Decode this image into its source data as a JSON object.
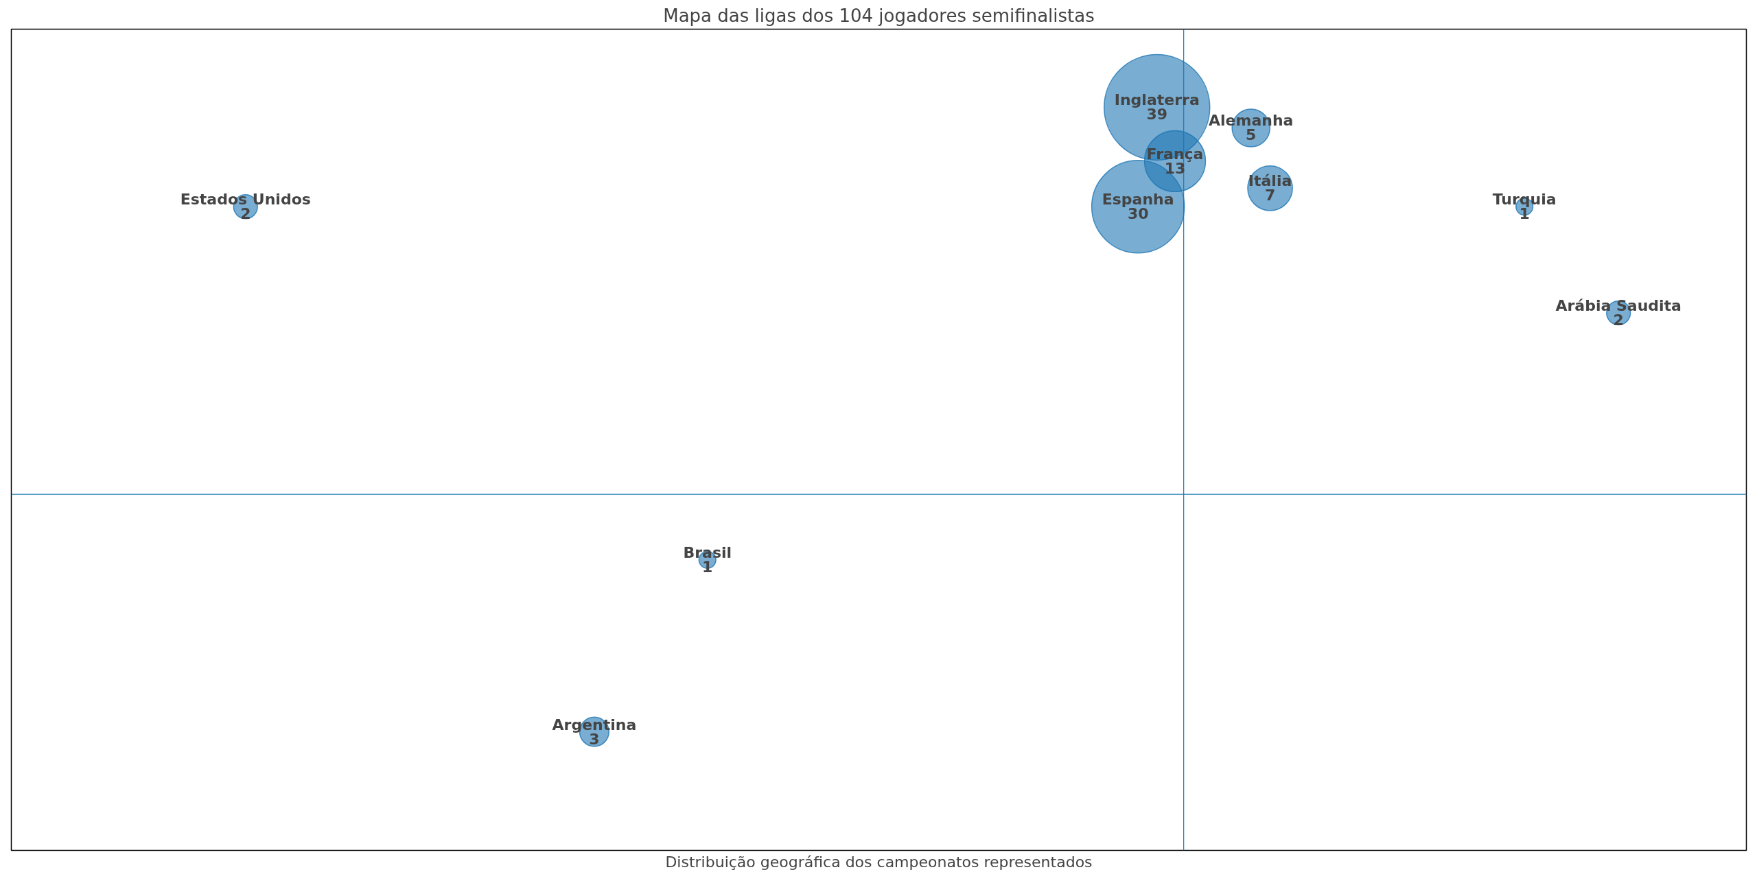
{
  "chart_data": {
    "type": "other",
    "title": "Mapa das ligas dos 104 jogadores semifinalistas",
    "xlabel": "Distribuição geográfica dos campeonatos representados",
    "color": "#1f77b4",
    "data_labels": true,
    "categories": [
      "Inglaterra",
      "Espanha",
      "França",
      "Alemanha",
      "Itália",
      "Turquia",
      "Arábia Saudita",
      "Estados Unidos",
      "Brasil",
      "Argentina"
    ],
    "values": [
      39,
      30,
      13,
      5,
      7,
      1,
      2,
      2,
      1,
      3
    ]
  }
}
